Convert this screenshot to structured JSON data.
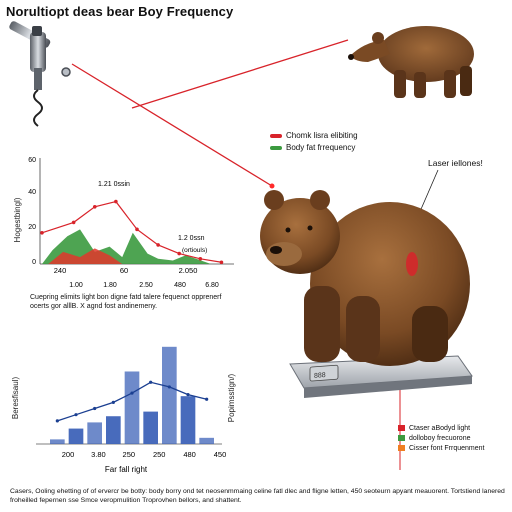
{
  "title": "Norultiopt deas bear Boy Frequency",
  "colors": {
    "laser_red": "#d8232a",
    "fur_brown": "#7a4a24",
    "fur_dark": "#4a2a12",
    "chart_green": "#3b9a3f",
    "chart_red": "#e2372c",
    "bar_blue": "#3e63b8",
    "line_navy": "#1b3f91",
    "orange": "#ef7f22"
  },
  "icons": [
    "laser-device-icon",
    "bear-illustration",
    "scale-icon"
  ],
  "top_legend": {
    "items": [
      {
        "label": "Chomk lisra elibiting",
        "color": "#d8232a"
      },
      {
        "label": "Body fat frrequency",
        "color": "#3b9a3f"
      }
    ]
  },
  "laser_label": "Laser iellones!",
  "chart1": {
    "y_title": "Hogestbingl)",
    "y_ticks": [
      "60",
      "40",
      "20",
      "0"
    ],
    "x_ticks_row1": [
      "240",
      "60",
      "2.050"
    ],
    "x_ticks_row2": [
      "1.00",
      "1.80",
      "2.50",
      "480",
      "6.80"
    ],
    "annotation_peak": "1.21 0ssin",
    "annotation_low": "1.2 0ssn",
    "annotation_low2": "(ortiouls)",
    "caption": "Cuepring elimits light bon digne fatd talere fequenct opprenerf ocerts gor alllB. X agnd fost andinemeny."
  },
  "chart_data": [
    {
      "type": "line",
      "title": "",
      "ylabel": "Hogestbingl)",
      "ylim": [
        0,
        60
      ],
      "xlim": [
        0,
        9
      ],
      "series": [
        {
          "x": [
            0,
            1.5,
            2.5,
            3.5,
            4.5,
            5.5,
            6.5,
            7.5,
            8.5
          ],
          "values": [
            18,
            24,
            33,
            36,
            20,
            11,
            6,
            3,
            1
          ]
        }
      ],
      "areas": [
        {
          "color": "#3b9a3f",
          "x": [
            0,
            0.5,
            1.2,
            1.8,
            2.5,
            3.2,
            3.8,
            4.3,
            5,
            5.5,
            6.2,
            6.8,
            7.3,
            8
          ],
          "values": [
            0,
            8,
            16,
            20,
            7,
            10,
            4,
            18,
            6,
            3,
            2,
            5,
            3,
            0
          ]
        },
        {
          "color": "#e2372c",
          "x": [
            0.3,
            1,
            1.8,
            2.5,
            3.2,
            3.8
          ],
          "values": [
            0,
            7,
            4,
            9,
            5,
            0
          ]
        }
      ]
    },
    {
      "type": "bar",
      "title": "",
      "xlabel": "Far fall right",
      "ylabel": "Beresfisaul)",
      "y2label": "Popimsstign/)",
      "x_ticks": [
        "200",
        "3.80",
        "250",
        "250",
        "480",
        "450"
      ],
      "categories": [
        "b1",
        "b2",
        "b3",
        "b4",
        "b5",
        "b6",
        "b7",
        "b8",
        "b9"
      ],
      "values": [
        3,
        10,
        14,
        18,
        47,
        21,
        63,
        31,
        4
      ],
      "ylim": [
        0,
        70
      ],
      "series": [
        {
          "type": "line",
          "values": [
            15,
            19,
            23,
            27,
            33,
            40,
            37,
            32,
            29
          ]
        }
      ]
    }
  ],
  "bottom_legend": {
    "items": [
      {
        "label": "Ctaser aBodyd light",
        "color": "#d8232a"
      },
      {
        "label": "dolloboy frecuorone",
        "color": "#3b9a3f"
      },
      {
        "label": "Cisser font Frrquenment",
        "color": "#ef7f22"
      }
    ]
  },
  "footer": "Casers, Ooling ehetting of of ervercr be botty: body borry ond tet neosenmmaing celine fatl dlec and fligne letten, 450 seoteurn apyant meauorent. Tortstiend lanered froheilled fepernen sse Smce veropmulition Troprovhen bellors, and shattent."
}
